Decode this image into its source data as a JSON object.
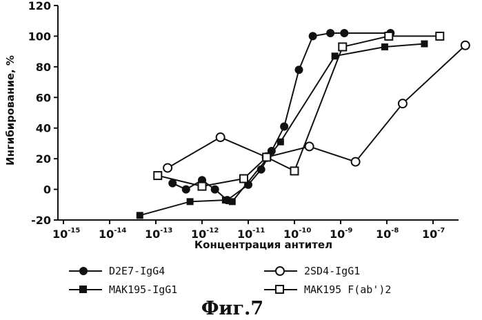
{
  "chart_data": {
    "type": "line",
    "title": "",
    "xlabel": "Концентрация антител",
    "ylabel": "Ингибирование, %",
    "x_scale": "log",
    "xlim": [
      1e-15,
      1e-07
    ],
    "ylim": [
      -20,
      120
    ],
    "x_ticks": [
      {
        "base": "10",
        "exp": "-15"
      },
      {
        "base": "10",
        "exp": "-14"
      },
      {
        "base": "10",
        "exp": "-13"
      },
      {
        "base": "10",
        "exp": "-12"
      },
      {
        "base": "10",
        "exp": "-11"
      },
      {
        "base": "10",
        "exp": "-10"
      },
      {
        "base": "10",
        "exp": "-9"
      },
      {
        "base": "10",
        "exp": "-8"
      },
      {
        "base": "10",
        "exp": "-7"
      }
    ],
    "x_tick_values": [
      1e-15,
      1e-14,
      1e-13,
      1e-12,
      1e-11,
      1e-10,
      1e-09,
      1e-08,
      1e-07
    ],
    "y_ticks": [
      "-20",
      "0",
      "20",
      "40",
      "60",
      "80",
      "100",
      "120"
    ],
    "y_tick_values": [
      -20,
      0,
      20,
      40,
      60,
      80,
      100,
      120
    ],
    "legend_position": "bottom",
    "series": [
      {
        "name": "D2E7-IgG4",
        "marker": "filled-circle",
        "points": [
          [
            2.3e-13,
            4
          ],
          [
            4.5e-13,
            0
          ],
          [
            1e-12,
            6
          ],
          [
            1.9e-12,
            0
          ],
          [
            3.5e-12,
            -7
          ],
          [
            1e-11,
            3
          ],
          [
            1.9e-11,
            13
          ],
          [
            3.2e-11,
            25
          ],
          [
            6e-11,
            41
          ],
          [
            1.25e-10,
            78
          ],
          [
            2.5e-10,
            100
          ],
          [
            6e-10,
            102
          ],
          [
            1.2e-09,
            102
          ],
          [
            1.2e-08,
            102
          ]
        ]
      },
      {
        "name": "2SD4-IgG1",
        "marker": "open-circle",
        "points": [
          [
            1.8e-13,
            14
          ],
          [
            2.5e-12,
            34
          ],
          [
            2.5e-11,
            21
          ],
          [
            2.1e-10,
            28
          ],
          [
            2.1e-09,
            18
          ],
          [
            2.2e-08,
            56
          ],
          [
            5e-07,
            94
          ]
        ]
      },
      {
        "name": "MAK195-IgG1",
        "marker": "filled-square",
        "points": [
          [
            4.5e-14,
            -17
          ],
          [
            5.5e-13,
            -8
          ],
          [
            3.2e-12,
            -7
          ],
          [
            4.5e-12,
            -8
          ],
          [
            5e-11,
            31
          ],
          [
            7.5e-10,
            87
          ],
          [
            9e-09,
            93
          ],
          [
            6.5e-08,
            95
          ]
        ]
      },
      {
        "name": "MAK195 F(ab')2",
        "marker": "open-square",
        "points": [
          [
            1.1e-13,
            9
          ],
          [
            1e-12,
            2
          ],
          [
            8e-12,
            7
          ],
          [
            2.5e-11,
            21
          ],
          [
            1e-10,
            12
          ],
          [
            1.1e-09,
            93
          ],
          [
            1.1e-08,
            100
          ],
          [
            1.4e-07,
            100
          ]
        ]
      }
    ]
  },
  "legend": [
    {
      "label": "D2E7-IgG4"
    },
    {
      "label": "2SD4-IgG1"
    },
    {
      "label": "MAK195-IgG1"
    },
    {
      "label": "MAK195 F(ab')2"
    }
  ],
  "caption": "Фиг.7"
}
